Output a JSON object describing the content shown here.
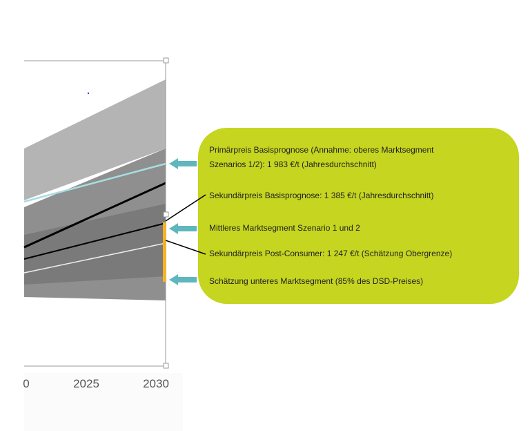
{
  "axis": {
    "x_ticks": [
      "0",
      "2025",
      "2030"
    ]
  },
  "callout": {
    "items": [
      [
        "Primärpreis Basisprognose (Annahme: oberes Marktsegment",
        "Szenarios 1/2): 1 983 €/t (Jahresdurchschnitt)"
      ],
      [
        "Sekundärpreis Basisprognose: 1 385 €/t (Jahresdurchschnitt)"
      ],
      [
        "Mittleres Marktsegment Szenario 1 und 2"
      ],
      [
        "Sekundärpreis Post-Consumer: 1 247 €/t (Schätzung Obergrenze)"
      ],
      [
        "Schätzung unteres Marktsegment (85% des DSD-Preises)"
      ]
    ]
  }
}
